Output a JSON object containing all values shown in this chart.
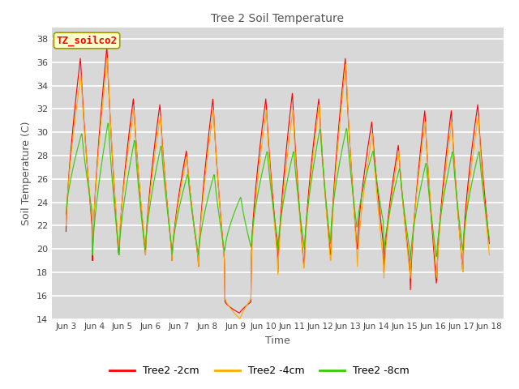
{
  "title": "Tree 2 Soil Temperature",
  "xlabel": "Time",
  "ylabel": "Soil Temperature (C)",
  "ylim": [
    14,
    39
  ],
  "xlim": [
    -0.5,
    15.5
  ],
  "plot_bg_color": "#d8d8d8",
  "grid_color": "#bbbbbb",
  "annotation_text": "TZ_soilco2",
  "annotation_bg": "#ffffcc",
  "annotation_border": "#cccc00",
  "colors": {
    "2cm": "#ff0000",
    "4cm": "#ffaa00",
    "8cm": "#33cc00"
  },
  "legend_labels": [
    "Tree2 -2cm",
    "Tree2 -4cm",
    "Tree2 -8cm"
  ],
  "xtick_labels": [
    "Jun 3",
    "Jun 4",
    "Jun 5",
    "Jun 6",
    "Jun 7",
    "Jun 8",
    "Jun 9",
    "Jun 10",
    "Jun 11",
    "Jun 12",
    "Jun 13",
    "Jun 14",
    "Jun 15",
    "Jun 16",
    "Jun 17",
    "Jun 18"
  ],
  "xtick_positions": [
    0,
    1,
    2,
    3,
    4,
    5,
    6,
    7,
    8,
    9,
    10,
    11,
    12,
    13,
    14,
    15
  ],
  "day_max_2cm": [
    36.5,
    37.5,
    33.0,
    32.5,
    28.5,
    33.0,
    14.5,
    33.0,
    33.5,
    33.0,
    36.5,
    31.0,
    29.0,
    32.0,
    32.0,
    32.5
  ],
  "day_min_2cm": [
    21.5,
    19.0,
    19.5,
    19.5,
    19.0,
    18.5,
    15.5,
    19.5,
    18.0,
    19.0,
    19.5,
    20.0,
    18.0,
    16.5,
    17.5,
    20.0
  ],
  "day_max_4cm": [
    35.0,
    36.5,
    32.0,
    31.5,
    28.0,
    32.0,
    14.0,
    32.0,
    32.0,
    32.5,
    36.0,
    30.0,
    28.5,
    31.0,
    31.0,
    31.5
  ],
  "day_min_4cm": [
    22.0,
    19.5,
    20.0,
    19.5,
    19.0,
    18.5,
    15.8,
    18.8,
    17.8,
    18.5,
    19.0,
    18.5,
    17.5,
    17.5,
    17.5,
    19.0
  ],
  "day_max_8cm": [
    30.0,
    31.0,
    29.5,
    29.0,
    26.5,
    26.5,
    24.5,
    28.5,
    28.5,
    30.5,
    30.5,
    28.5,
    27.0,
    27.5,
    28.5,
    28.5
  ],
  "day_min_8cm": [
    23.0,
    19.5,
    19.5,
    20.0,
    19.5,
    19.5,
    20.0,
    20.5,
    20.0,
    20.0,
    21.5,
    22.0,
    19.5,
    19.0,
    19.5,
    20.5
  ]
}
